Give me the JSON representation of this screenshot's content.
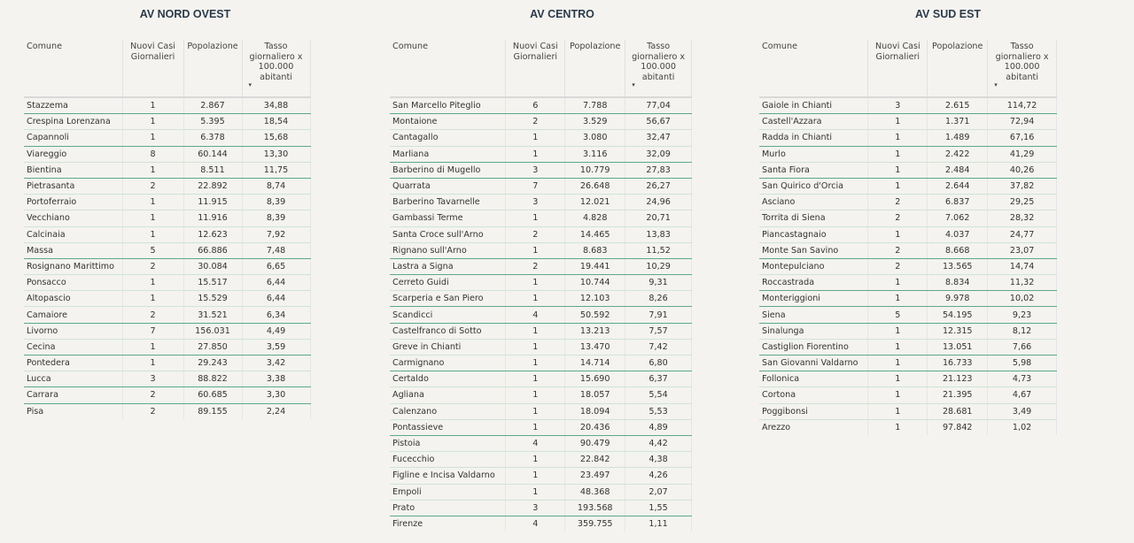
{
  "columns": {
    "comune": "Comune",
    "nuovi": "Nuovi Casi Giornalieri",
    "popolazione": "Popolazione",
    "tasso": "Tasso giornaliero x 100.000 abitanti",
    "sort_icon": "sort-descending-icon"
  },
  "panels": [
    {
      "title": "AV NORD OVEST",
      "rows": [
        [
          "Stazzema",
          "1",
          "2.867",
          "34,88"
        ],
        [
          "Crespina Lorenzana",
          "1",
          "5.395",
          "18,54"
        ],
        [
          "Capannoli",
          "1",
          "6.378",
          "15,68"
        ],
        [
          "Viareggio",
          "8",
          "60.144",
          "13,30"
        ],
        [
          "Bientina",
          "1",
          "8.511",
          "11,75"
        ],
        [
          "Pietrasanta",
          "2",
          "22.892",
          "8,74"
        ],
        [
          "Portoferraio",
          "1",
          "11.915",
          "8,39"
        ],
        [
          "Vecchiano",
          "1",
          "11.916",
          "8,39"
        ],
        [
          "Calcinaia",
          "1",
          "12.623",
          "7,92"
        ],
        [
          "Massa",
          "5",
          "66.886",
          "7,48"
        ],
        [
          "Rosignano Marittimo",
          "2",
          "30.084",
          "6,65"
        ],
        [
          "Ponsacco",
          "1",
          "15.517",
          "6,44"
        ],
        [
          "Altopascio",
          "1",
          "15.529",
          "6,44"
        ],
        [
          "Camaiore",
          "2",
          "31.521",
          "6,34"
        ],
        [
          "Livorno",
          "7",
          "156.031",
          "4,49"
        ],
        [
          "Cecina",
          "1",
          "27.850",
          "3,59"
        ],
        [
          "Pontedera",
          "1",
          "29.243",
          "3,42"
        ],
        [
          "Lucca",
          "3",
          "88.822",
          "3,38"
        ],
        [
          "Carrara",
          "2",
          "60.685",
          "3,30"
        ],
        [
          "Pisa",
          "2",
          "89.155",
          "2,24"
        ]
      ]
    },
    {
      "title": "AV CENTRO",
      "rows": [
        [
          "San Marcello Piteglio",
          "6",
          "7.788",
          "77,04"
        ],
        [
          "Montaione",
          "2",
          "3.529",
          "56,67"
        ],
        [
          "Cantagallo",
          "1",
          "3.080",
          "32,47"
        ],
        [
          "Marliana",
          "1",
          "3.116",
          "32,09"
        ],
        [
          "Barberino di Mugello",
          "3",
          "10.779",
          "27,83"
        ],
        [
          "Quarrata",
          "7",
          "26.648",
          "26,27"
        ],
        [
          "Barberino Tavarnelle",
          "3",
          "12.021",
          "24,96"
        ],
        [
          "Gambassi Terme",
          "1",
          "4.828",
          "20,71"
        ],
        [
          "Santa Croce sull'Arno",
          "2",
          "14.465",
          "13,83"
        ],
        [
          "Rignano sull'Arno",
          "1",
          "8.683",
          "11,52"
        ],
        [
          "Lastra a Signa",
          "2",
          "19.441",
          "10,29"
        ],
        [
          "Cerreto Guidi",
          "1",
          "10.744",
          "9,31"
        ],
        [
          "Scarperia e San Piero",
          "1",
          "12.103",
          "8,26"
        ],
        [
          "Scandicci",
          "4",
          "50.592",
          "7,91"
        ],
        [
          "Castelfranco di Sotto",
          "1",
          "13.213",
          "7,57"
        ],
        [
          "Greve in Chianti",
          "1",
          "13.470",
          "7,42"
        ],
        [
          "Carmignano",
          "1",
          "14.714",
          "6,80"
        ],
        [
          "Certaldo",
          "1",
          "15.690",
          "6,37"
        ],
        [
          "Agliana",
          "1",
          "18.057",
          "5,54"
        ],
        [
          "Calenzano",
          "1",
          "18.094",
          "5,53"
        ],
        [
          "Pontassieve",
          "1",
          "20.436",
          "4,89"
        ],
        [
          "Pistoia",
          "4",
          "90.479",
          "4,42"
        ],
        [
          "Fucecchio",
          "1",
          "22.842",
          "4,38"
        ],
        [
          "Figline e Incisa Valdarno",
          "1",
          "23.497",
          "4,26"
        ],
        [
          "Empoli",
          "1",
          "48.368",
          "2,07"
        ],
        [
          "Prato",
          "3",
          "193.568",
          "1,55"
        ],
        [
          "Firenze",
          "4",
          "359.755",
          "1,11"
        ]
      ]
    },
    {
      "title": "AV SUD EST",
      "rows": [
        [
          "Gaiole in Chianti",
          "3",
          "2.615",
          "114,72"
        ],
        [
          "Castell'Azzara",
          "1",
          "1.371",
          "72,94"
        ],
        [
          "Radda in Chianti",
          "1",
          "1.489",
          "67,16"
        ],
        [
          "Murlo",
          "1",
          "2.422",
          "41,29"
        ],
        [
          "Santa Fiora",
          "1",
          "2.484",
          "40,26"
        ],
        [
          "San Quirico d'Orcia",
          "1",
          "2.644",
          "37,82"
        ],
        [
          "Asciano",
          "2",
          "6.837",
          "29,25"
        ],
        [
          "Torrita di Siena",
          "2",
          "7.062",
          "28,32"
        ],
        [
          "Piancastagnaio",
          "1",
          "4.037",
          "24,77"
        ],
        [
          "Monte San Savino",
          "2",
          "8.668",
          "23,07"
        ],
        [
          "Montepulciano",
          "2",
          "13.565",
          "14,74"
        ],
        [
          "Roccastrada",
          "1",
          "8.834",
          "11,32"
        ],
        [
          "Monteriggioni",
          "1",
          "9.978",
          "10,02"
        ],
        [
          "Siena",
          "5",
          "54.195",
          "9,23"
        ],
        [
          "Sinalunga",
          "1",
          "12.315",
          "8,12"
        ],
        [
          "Castiglion Fiorentino",
          "1",
          "13.051",
          "7,66"
        ],
        [
          "San Giovanni Valdarno",
          "1",
          "16.733",
          "5,98"
        ],
        [
          "Follonica",
          "1",
          "21.123",
          "4,73"
        ],
        [
          "Cortona",
          "1",
          "21.395",
          "4,67"
        ],
        [
          "Poggibonsi",
          "1",
          "28.681",
          "3,49"
        ],
        [
          "Arezzo",
          "1",
          "97.842",
          "1,02"
        ]
      ]
    }
  ]
}
